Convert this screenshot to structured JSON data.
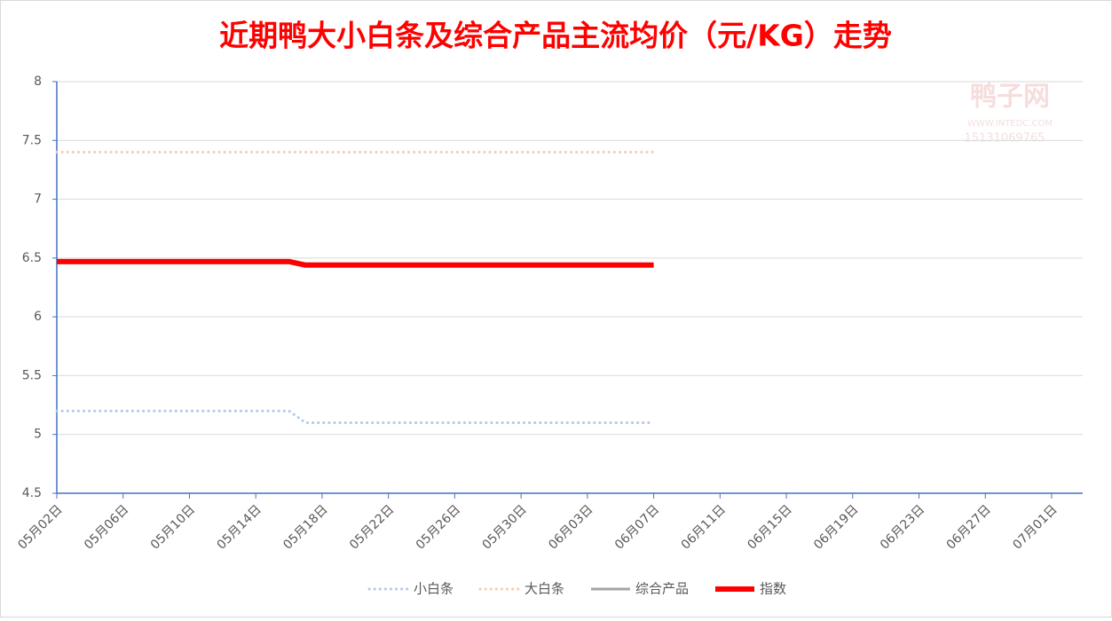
{
  "chart_data": {
    "type": "line",
    "title": "近期鸭大小白条及综合产品主流均价（元/KG）走势",
    "watermark": {
      "brand": "鸭子网",
      "site": "WWW.INTEDC.COM",
      "phone": "15131069765"
    },
    "categories": [
      "05月02日",
      null,
      null,
      null,
      "05月06日",
      null,
      null,
      null,
      "05月10日",
      null,
      null,
      null,
      "05月14日",
      null,
      null,
      null,
      "05月18日",
      null,
      null,
      null,
      "05月22日",
      null,
      null,
      null,
      "05月26日",
      null,
      null,
      null,
      "05月30日",
      null,
      null,
      null,
      "06月03日",
      null,
      null,
      null,
      "06月07日",
      null,
      null,
      null,
      "06月11日",
      null,
      null,
      null,
      "06月15日",
      null,
      null,
      null,
      "06月19日",
      null,
      null,
      null,
      "06月23日",
      null,
      null,
      null,
      "06月27日",
      null,
      null,
      null,
      "07月01日"
    ],
    "series": [
      {
        "name": "小白条",
        "color": "#b4c7e7",
        "style": "dotted",
        "values": [
          5.2,
          5.2,
          5.2,
          5.2,
          5.2,
          5.2,
          5.2,
          5.2,
          5.2,
          5.2,
          5.2,
          5.2,
          5.2,
          5.2,
          5.2,
          5.1,
          5.1,
          5.1,
          5.1,
          5.1,
          5.1,
          5.1,
          5.1,
          5.1,
          5.1,
          5.1,
          5.1,
          5.1,
          5.1,
          5.1,
          5.1,
          5.1,
          5.1,
          5.1,
          5.1,
          5.1,
          5.1,
          null,
          null,
          null,
          null,
          null,
          null,
          null,
          null,
          null,
          null,
          null,
          null,
          null,
          null,
          null,
          null,
          null,
          null,
          null,
          null,
          null,
          null,
          null,
          null
        ]
      },
      {
        "name": "大白条",
        "color": "#f8cbad",
        "style": "dotted",
        "values": [
          7.4,
          7.4,
          7.4,
          7.4,
          7.4,
          7.4,
          7.4,
          7.4,
          7.4,
          7.4,
          7.4,
          7.4,
          7.4,
          7.4,
          7.4,
          7.4,
          7.4,
          7.4,
          7.4,
          7.4,
          7.4,
          7.4,
          7.4,
          7.4,
          7.4,
          7.4,
          7.4,
          7.4,
          7.4,
          7.4,
          7.4,
          7.4,
          7.4,
          7.4,
          7.4,
          7.4,
          7.4,
          null,
          null,
          null,
          null,
          null,
          null,
          null,
          null,
          null,
          null,
          null,
          null,
          null,
          null,
          null,
          null,
          null,
          null,
          null,
          null,
          null,
          null,
          null,
          null
        ]
      },
      {
        "name": "综合产品",
        "color": "#a5a5a5",
        "style": "solid",
        "values": [
          null,
          null,
          null,
          null,
          null,
          null,
          null,
          null,
          null,
          null,
          null,
          null,
          null,
          null,
          null,
          null,
          null,
          null,
          null,
          null,
          null,
          null,
          null,
          null,
          null,
          null,
          null,
          null,
          null,
          null,
          null,
          null,
          null,
          null,
          null,
          null,
          null,
          null,
          null,
          null,
          null,
          null,
          null,
          null,
          null,
          null,
          null,
          null,
          null,
          null,
          null,
          null,
          null,
          null,
          null,
          null,
          null,
          null,
          null,
          null,
          null
        ]
      },
      {
        "name": "指数",
        "color": "#ff0000",
        "style": "thick",
        "values": [
          6.47,
          6.47,
          6.47,
          6.47,
          6.47,
          6.47,
          6.47,
          6.47,
          6.47,
          6.47,
          6.47,
          6.47,
          6.47,
          6.47,
          6.47,
          6.44,
          6.44,
          6.44,
          6.44,
          6.44,
          6.44,
          6.44,
          6.44,
          6.44,
          6.44,
          6.44,
          6.44,
          6.44,
          6.44,
          6.44,
          6.44,
          6.44,
          6.44,
          6.44,
          6.44,
          6.44,
          6.44,
          null,
          null,
          null,
          null,
          null,
          null,
          null,
          null,
          null,
          null,
          null,
          null,
          null,
          null,
          null,
          null,
          null,
          null,
          null,
          null,
          null,
          null,
          null,
          null
        ]
      }
    ],
    "ylim": [
      4.5,
      8
    ],
    "yticks": [
      4.5,
      5,
      5.5,
      6,
      6.5,
      7,
      7.5,
      8
    ],
    "grid": true,
    "legend": "bottom"
  }
}
